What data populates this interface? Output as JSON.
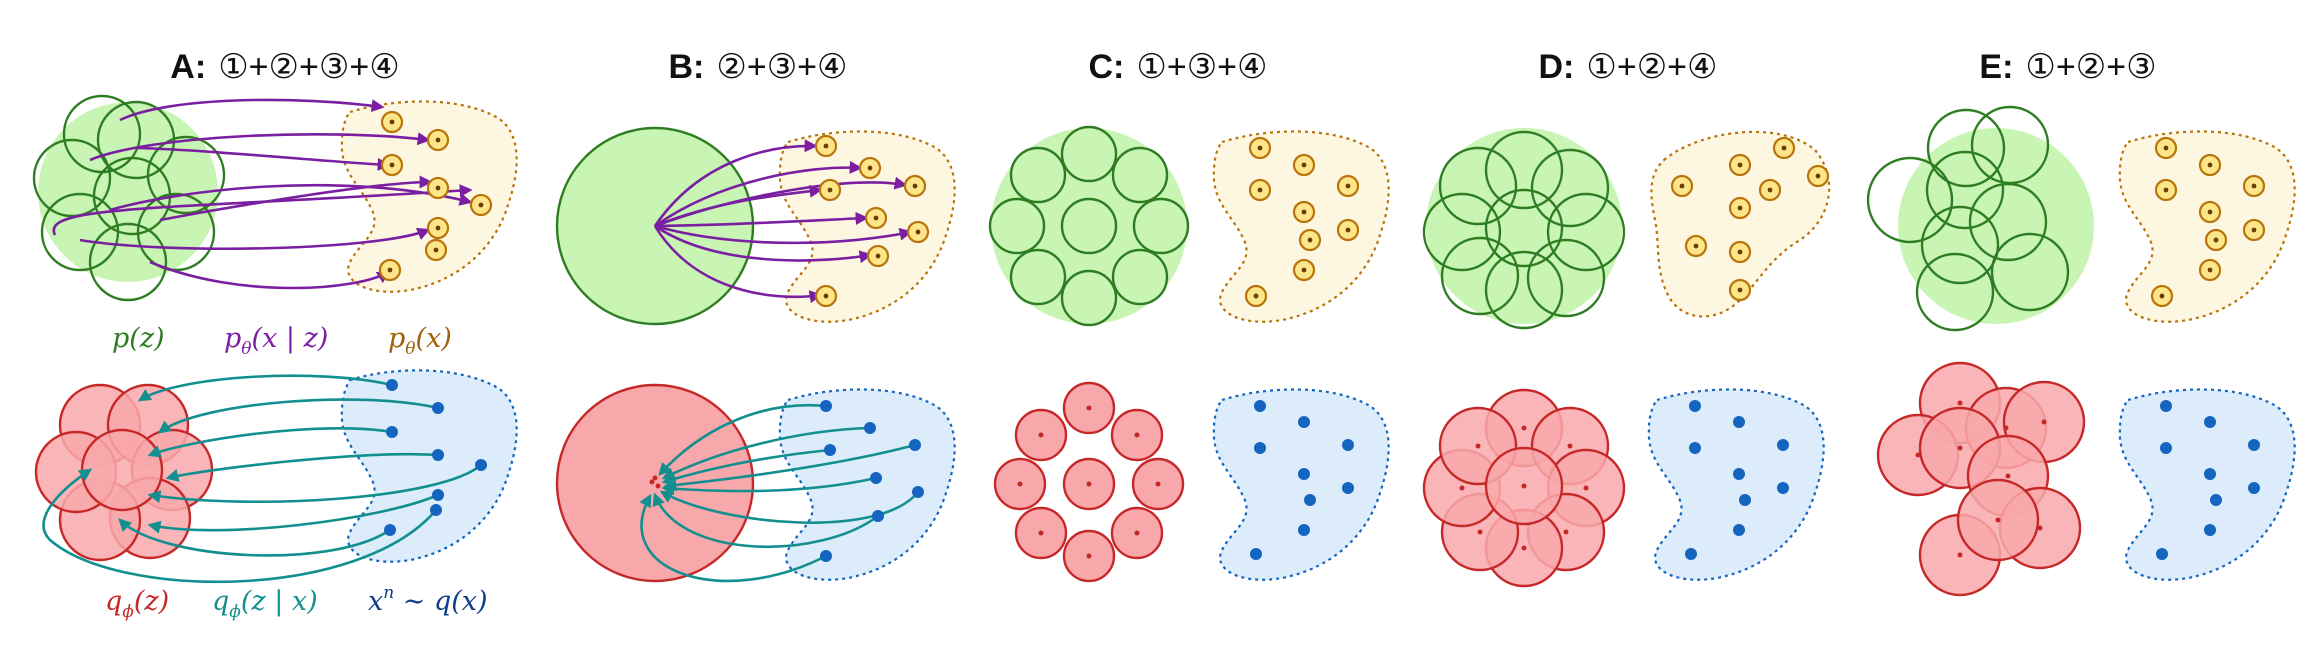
{
  "panels": [
    {
      "letter": "A:",
      "terms": "①+②+③+④"
    },
    {
      "letter": "B:",
      "terms": "②+③+④"
    },
    {
      "letter": "C:",
      "terms": "①+③+④"
    },
    {
      "letter": "D:",
      "terms": "①+②+④"
    },
    {
      "letter": "E:",
      "terms": "①+②+③"
    }
  ],
  "labels": {
    "prior": {
      "base": "p",
      "sub": "",
      "args": "(z)"
    },
    "decoder": {
      "base": "p",
      "sub": "θ",
      "args": "(x | z)"
    },
    "marginal": {
      "base": "p",
      "sub": "θ",
      "args": "(x)"
    },
    "aggregate_posterior": {
      "base": "q",
      "sub": "ϕ",
      "args": "(z)"
    },
    "encoder": {
      "base": "q",
      "sub": "ϕ",
      "args": "(z | x)"
    },
    "data": {
      "base": "x",
      "sup": "n",
      "args": " ∼ q(x)"
    }
  },
  "colors": {
    "prior_fill": "#c9f5b4",
    "prior_stroke": "#2e7d22",
    "posterior_fill": "#f8a8aa",
    "posterior_stroke": "#c62828",
    "decoder_arrow": "#7b1fa2",
    "encoder_arrow": "#138f8f",
    "model_region_fill": "#fdf7e2",
    "model_region_stroke": "#b8730a",
    "data_region_fill": "#dcecfb",
    "data_region_stroke": "#1565c0",
    "data_point": "#1565c0",
    "label_prior": "#2e7d22",
    "label_decoder": "#7b1fa2",
    "label_marginal": "#a0600a",
    "label_posterior": "#c62828",
    "label_encoder": "#138f8f",
    "label_data": "#0d3d8a"
  }
}
